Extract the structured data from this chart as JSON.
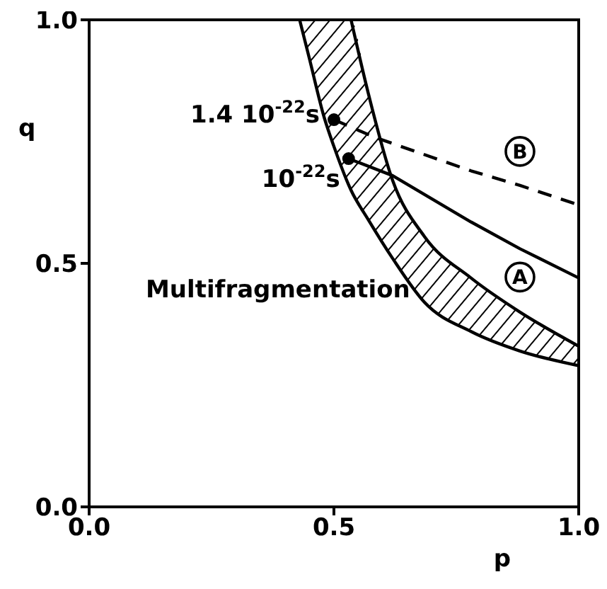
{
  "chart_data": {
    "type": "line",
    "xlabel": "p",
    "ylabel": "q",
    "xlim": [
      0,
      1
    ],
    "ylim": [
      0,
      1
    ],
    "xticks": [
      {
        "value": 0,
        "label": "0.0"
      },
      {
        "value": 0.5,
        "label": "0.5"
      },
      {
        "value": 1,
        "label": "1.0"
      }
    ],
    "yticks": [
      {
        "value": 0,
        "label": "0.0"
      },
      {
        "value": 0.5,
        "label": "0.5"
      },
      {
        "value": 1,
        "label": "1.0"
      }
    ],
    "grid": false,
    "legend": false,
    "marker": "none",
    "series": [
      {
        "type": "area",
        "color": "#000000",
        "x": [
          0.43,
          0.45,
          0.48,
          0.5,
          0.535,
          0.57,
          0.62,
          0.685,
          0.78,
          0.88,
          1.0
        ],
        "values": [
          null,
          null,
          null,
          null,
          null,
          null,
          null,
          null,
          null,
          null,
          null
        ],
        "lower": [
          1.0,
          0.92,
          0.8,
          0.74,
          0.65,
          0.59,
          0.51,
          0.42,
          0.36,
          0.32,
          0.29
        ],
        "upper": [
          1.0,
          1.0,
          1.0,
          1.0,
          1.0,
          0.85,
          0.67,
          0.555,
          0.47,
          0.4,
          0.33
        ]
      },
      {
        "color": "#000000",
        "x": [
          0.43,
          0.45,
          0.48,
          0.5,
          0.535,
          0.57,
          0.62,
          0.685,
          0.78,
          0.88,
          1.0
        ],
        "values": [
          1.0,
          0.92,
          0.8,
          0.74,
          0.65,
          0.59,
          0.51,
          0.42,
          0.36,
          0.32,
          0.29
        ]
      },
      {
        "color": "#000000",
        "x": [
          0.535,
          0.57,
          0.62,
          0.685,
          0.78,
          0.88,
          1.0
        ],
        "values": [
          1.0,
          0.85,
          0.67,
          0.555,
          0.47,
          0.4,
          0.33
        ]
      },
      {
        "name": "A",
        "color": "#000000",
        "line_style": "solid",
        "x": [
          0.53,
          0.62,
          0.78,
          0.88,
          1.0
        ],
        "values": [
          0.715,
          0.68,
          0.585,
          0.53,
          0.47
        ]
      },
      {
        "name": "B",
        "color": "#000000",
        "line_style": "dashed",
        "x": [
          0.5,
          0.58,
          0.78,
          0.88,
          1.0
        ],
        "values": [
          0.795,
          0.76,
          0.69,
          0.66,
          0.62
        ]
      }
    ],
    "annotations": [
      {
        "text": "1.4 10$^{-22}$s",
        "x": 0.5,
        "y": 0.795
      },
      {
        "text": "10$^{-22}$s",
        "x": 0.53,
        "y": 0.715
      },
      "Multifragmentation"
    ]
  }
}
